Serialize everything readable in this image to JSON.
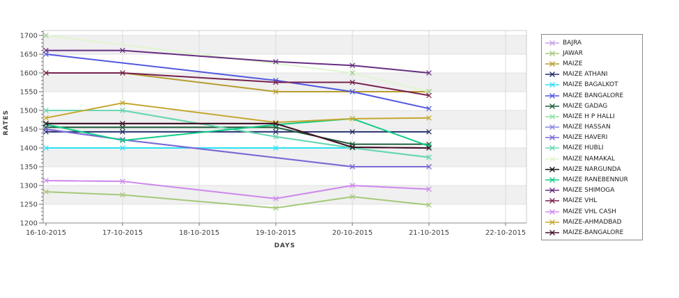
{
  "chart_data": {
    "type": "line",
    "title": "",
    "xlabel": "DAYS",
    "ylabel": "RATES",
    "x_tick_labels": [
      "16-10-2015",
      "17-10-2015",
      "18-10-2015",
      "19-10-2015",
      "20-10-2015",
      "21-10-2015",
      "22-10-2015"
    ],
    "y_ticks": [
      1200,
      1250,
      1300,
      1350,
      1400,
      1450,
      1500,
      1550,
      1600,
      1650,
      1700
    ],
    "ylim": [
      1200,
      1713
    ],
    "grid": true,
    "band_rows": [
      1250,
      1350,
      1450,
      1550,
      1650
    ],
    "legend_position": "right",
    "marker": "x",
    "series": [
      {
        "name": "BAJRA",
        "color": "#c79fe8",
        "x": [
          0,
          1,
          3,
          4,
          5
        ],
        "values": [
          1313,
          1311,
          1265,
          1300,
          1290
        ]
      },
      {
        "name": "JAWAR",
        "color": "#a5c878",
        "x": [
          0,
          1,
          3,
          4,
          5
        ],
        "values": [
          1283,
          1275,
          1240,
          1270,
          1248
        ]
      },
      {
        "name": "MAIZE",
        "color": "#b59c2c",
        "x": [
          0,
          1,
          3,
          4,
          5
        ],
        "values": [
          1600,
          1600,
          1550,
          1550,
          1550
        ]
      },
      {
        "name": "MAIZE ATHANI",
        "color": "#202a68",
        "x": [
          0,
          1,
          3,
          4,
          5
        ],
        "values": [
          1443,
          1443,
          1443,
          1443,
          1443
        ]
      },
      {
        "name": "MAIZE BAGALKOT",
        "color": "#2ce1f2",
        "x": [
          0,
          1,
          3,
          4,
          5
        ],
        "values": [
          1400,
          1400,
          1400,
          1400,
          1375
        ]
      },
      {
        "name": "MAIZE BANGALORE",
        "color": "#5157e0",
        "x": [
          0,
          3,
          4,
          5
        ],
        "values": [
          1650,
          1580,
          1550,
          1505
        ]
      },
      {
        "name": "MAIZE GADAG",
        "color": "#1d5c38",
        "x": [
          0,
          1,
          3,
          4,
          5
        ],
        "values": [
          1455,
          1455,
          1455,
          1410,
          1410
        ]
      },
      {
        "name": "MAIZE H P HALLI",
        "color": "#8fe2a4",
        "x": [
          0,
          1,
          3,
          4,
          5
        ],
        "values": [
          1500,
          1500,
          1430,
          1400,
          1375
        ]
      },
      {
        "name": "MAIZE HASSAN",
        "color": "#8787dd",
        "x": [
          0,
          1,
          4,
          5
        ],
        "values": [
          1450,
          1422,
          1350,
          1350
        ]
      },
      {
        "name": "MAIZE HAVERI",
        "color": "#7b68d4",
        "x": [
          0,
          1,
          4,
          5
        ],
        "values": [
          1450,
          1422,
          1350,
          1350
        ]
      },
      {
        "name": "MAIZE HUBLI",
        "color": "#68d6b2",
        "x": [
          0,
          1,
          3,
          4,
          5
        ],
        "values": [
          1500,
          1500,
          1430,
          1400,
          1375
        ]
      },
      {
        "name": "MAIZE NAMAKAL",
        "color": "#dff6cf",
        "x": [
          0,
          4,
          5
        ],
        "values": [
          1700,
          1600,
          1550
        ]
      },
      {
        "name": "MAIZE NARGUNDA",
        "color": "#141414",
        "x": [
          0,
          1,
          3,
          4,
          5
        ],
        "values": [
          1465,
          1465,
          1465,
          1402,
          1400
        ]
      },
      {
        "name": "MAIZE RANEBENNUR",
        "color": "#10cc85",
        "x": [
          0,
          1,
          3,
          4,
          5
        ],
        "values": [
          1463,
          1420,
          1462,
          1478,
          1405
        ]
      },
      {
        "name": "MAIZE SHIMOGA",
        "color": "#672d80",
        "x": [
          0,
          1,
          3,
          4,
          5
        ],
        "values": [
          1660,
          1660,
          1630,
          1620,
          1600
        ]
      },
      {
        "name": "MAIZE VHL",
        "color": "#76204d",
        "x": [
          0,
          1,
          3,
          4,
          5
        ],
        "values": [
          1600,
          1600,
          1575,
          1575,
          1540
        ]
      },
      {
        "name": "MAIZE VHL CASH",
        "color": "#d08cec",
        "x": [
          0,
          1,
          3,
          4,
          5
        ],
        "values": [
          1313,
          1311,
          1265,
          1300,
          1290
        ]
      },
      {
        "name": "MAIZE-AHMADBAD",
        "color": "#c4a72e",
        "x": [
          0,
          1,
          3,
          4,
          5
        ],
        "values": [
          1480,
          1520,
          1468,
          1478,
          1480
        ]
      },
      {
        "name": "MAIZE-BANGALORE",
        "color": "#431029",
        "x": [
          0,
          1,
          3,
          4,
          5
        ],
        "values": [
          1465,
          1465,
          1465,
          1402,
          1400
        ]
      }
    ]
  }
}
